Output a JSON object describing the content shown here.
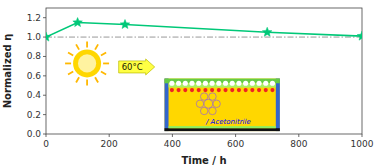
{
  "chart_data": {
    "type": "line",
    "x": [
      0,
      100,
      250,
      700,
      1000
    ],
    "series": [
      {
        "name": "Normalized η",
        "color": "#00c878",
        "marker": "star",
        "line_style": "solid",
        "values": [
          1.0,
          1.15,
          1.13,
          1.05,
          1.01
        ]
      }
    ],
    "xlabel": "Time / h",
    "ylabel": "Normalized η",
    "xlim": [
      0,
      1000
    ],
    "ylim": [
      0,
      1.3
    ],
    "xticks": [
      0,
      200,
      400,
      600,
      800,
      1000
    ],
    "yticks": [
      {
        "value": 0.0,
        "label": "0.0"
      },
      0.2,
      0.4,
      0.6,
      0.8,
      {
        "value": 1.0,
        "label": "1.0"
      },
      1.2
    ],
    "reference_lines": [
      {
        "y": 1.0,
        "color": "#999999",
        "line_style": "dashdot"
      }
    ],
    "annotations": [
      {
        "text": "60°C",
        "x": 230,
        "y": 0.63
      },
      {
        "text": "/ Acetonitrile"
      }
    ],
    "grid": false
  }
}
